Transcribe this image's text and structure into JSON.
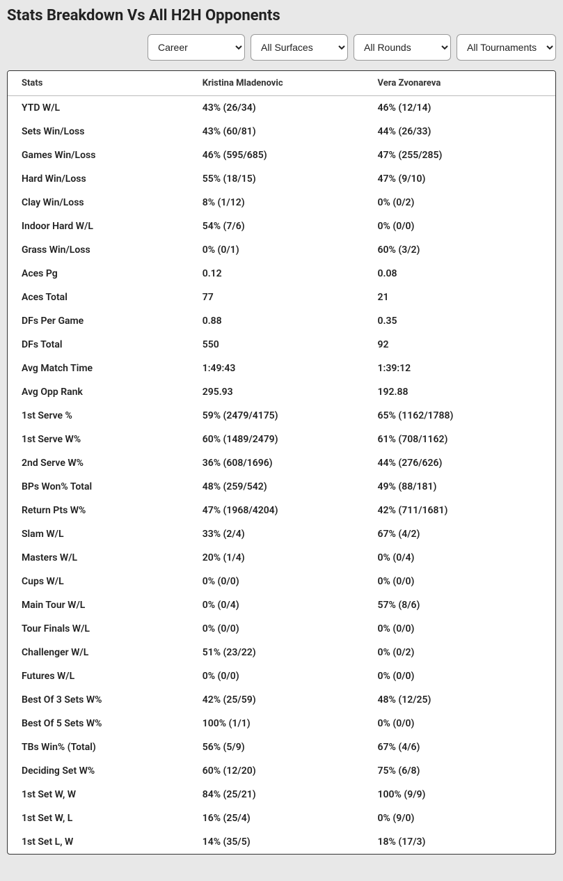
{
  "title": "Stats Breakdown Vs All H2H Opponents",
  "filters": {
    "period": "Career",
    "surface": "All Surfaces",
    "round": "All Rounds",
    "tournament": "All Tournaments"
  },
  "table": {
    "columns": [
      "Stats",
      "Kristina Mladenovic",
      "Vera Zvonareva"
    ],
    "rows": [
      [
        "YTD W/L",
        "43% (26/34)",
        "46% (12/14)"
      ],
      [
        "Sets Win/Loss",
        "43% (60/81)",
        "44% (26/33)"
      ],
      [
        "Games Win/Loss",
        "46% (595/685)",
        "47% (255/285)"
      ],
      [
        "Hard Win/Loss",
        "55% (18/15)",
        "47% (9/10)"
      ],
      [
        "Clay Win/Loss",
        "8% (1/12)",
        "0% (0/2)"
      ],
      [
        "Indoor Hard W/L",
        "54% (7/6)",
        "0% (0/0)"
      ],
      [
        "Grass Win/Loss",
        "0% (0/1)",
        "60% (3/2)"
      ],
      [
        "Aces Pg",
        "0.12",
        "0.08"
      ],
      [
        "Aces Total",
        "77",
        "21"
      ],
      [
        "DFs Per Game",
        "0.88",
        "0.35"
      ],
      [
        "DFs Total",
        "550",
        "92"
      ],
      [
        "Avg Match Time",
        "1:49:43",
        "1:39:12"
      ],
      [
        "Avg Opp Rank",
        "295.93",
        "192.88"
      ],
      [
        "1st Serve %",
        "59% (2479/4175)",
        "65% (1162/1788)"
      ],
      [
        "1st Serve W%",
        "60% (1489/2479)",
        "61% (708/1162)"
      ],
      [
        "2nd Serve W%",
        "36% (608/1696)",
        "44% (276/626)"
      ],
      [
        "BPs Won% Total",
        "48% (259/542)",
        "49% (88/181)"
      ],
      [
        "Return Pts W%",
        "47% (1968/4204)",
        "42% (711/1681)"
      ],
      [
        "Slam W/L",
        "33% (2/4)",
        "67% (4/2)"
      ],
      [
        "Masters W/L",
        "20% (1/4)",
        "0% (0/4)"
      ],
      [
        "Cups W/L",
        "0% (0/0)",
        "0% (0/0)"
      ],
      [
        "Main Tour W/L",
        "0% (0/4)",
        "57% (8/6)"
      ],
      [
        "Tour Finals W/L",
        "0% (0/0)",
        "0% (0/0)"
      ],
      [
        "Challenger W/L",
        "51% (23/22)",
        "0% (0/2)"
      ],
      [
        "Futures W/L",
        "0% (0/0)",
        "0% (0/0)"
      ],
      [
        "Best Of 3 Sets W%",
        "42% (25/59)",
        "48% (12/25)"
      ],
      [
        "Best Of 5 Sets W%",
        "100% (1/1)",
        "0% (0/0)"
      ],
      [
        "TBs Win% (Total)",
        "56% (5/9)",
        "67% (4/6)"
      ],
      [
        "Deciding Set W%",
        "60% (12/20)",
        "75% (6/8)"
      ],
      [
        "1st Set W, W",
        "84% (25/21)",
        "100% (9/9)"
      ],
      [
        "1st Set W, L",
        "16% (25/4)",
        "0% (9/0)"
      ],
      [
        "1st Set L, W",
        "14% (35/5)",
        "18% (17/3)"
      ]
    ]
  }
}
